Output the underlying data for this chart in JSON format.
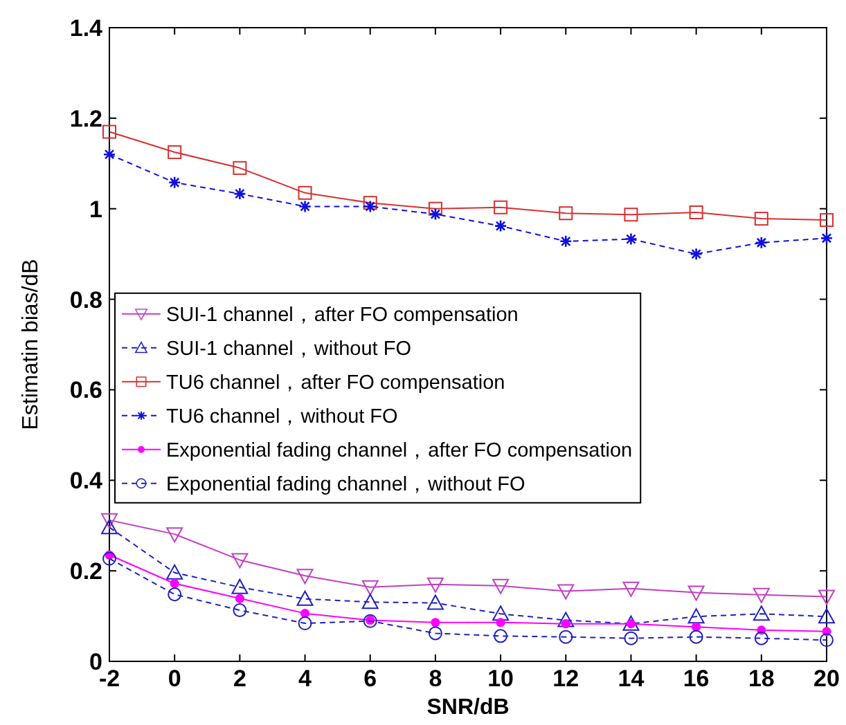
{
  "chart_data": {
    "type": "line",
    "xlabel": "SNR/dB",
    "ylabel": "Estimatin bias/dB",
    "x": [
      -2,
      0,
      2,
      4,
      6,
      8,
      10,
      12,
      14,
      16,
      18,
      20
    ],
    "xlim": [
      -2,
      20
    ],
    "xticks": [
      -2,
      0,
      2,
      4,
      6,
      8,
      10,
      12,
      14,
      16,
      18,
      20
    ],
    "ylim": [
      0,
      1.4
    ],
    "yticks": [
      0,
      0.2,
      0.4,
      0.6,
      0.8,
      1,
      1.2,
      1.4
    ],
    "legend": "left",
    "series": [
      {
        "name": "SUI-1 channel，after FO compensation",
        "color": "#c040c0",
        "marker": "triangle_down",
        "line_style": "solid",
        "values": [
          0.312,
          0.281,
          0.224,
          0.189,
          0.164,
          0.17,
          0.167,
          0.155,
          0.161,
          0.152,
          0.147,
          0.143
        ]
      },
      {
        "name": "SUI-1 channel，without FO",
        "color": "#2020c0",
        "marker": "triangle",
        "line_style": "dashed",
        "values": [
          0.296,
          0.196,
          0.164,
          0.138,
          0.131,
          0.129,
          0.105,
          0.091,
          0.083,
          0.099,
          0.105,
          0.099
        ]
      },
      {
        "name": "TU6 channel，after FO compensation",
        "color": "#d83030",
        "marker": "square",
        "line_style": "solid",
        "values": [
          1.17,
          1.125,
          1.09,
          1.035,
          1.013,
          1.0,
          1.003,
          0.99,
          0.987,
          0.992,
          0.978,
          0.975
        ]
      },
      {
        "name": "TU6 channel，without FO",
        "color": "#1010e0",
        "marker": "cross",
        "line_style": "dashed",
        "values": [
          1.12,
          1.058,
          1.033,
          1.005,
          1.005,
          0.988,
          0.962,
          0.928,
          0.933,
          0.9,
          0.925,
          0.935
        ]
      },
      {
        "name": "Exponential fading channel，after FO compensation",
        "color": "#ff00ff",
        "marker": "point",
        "line_style": "solid",
        "values": [
          0.235,
          0.172,
          0.139,
          0.106,
          0.091,
          0.086,
          0.086,
          0.083,
          0.083,
          0.076,
          0.069,
          0.066
        ]
      },
      {
        "name": "Exponential fading channel，without FO",
        "color": "#2020c0",
        "marker": "circle",
        "line_style": "dashed",
        "values": [
          0.227,
          0.148,
          0.113,
          0.084,
          0.089,
          0.062,
          0.056,
          0.054,
          0.051,
          0.054,
          0.051,
          0.047
        ]
      }
    ]
  }
}
